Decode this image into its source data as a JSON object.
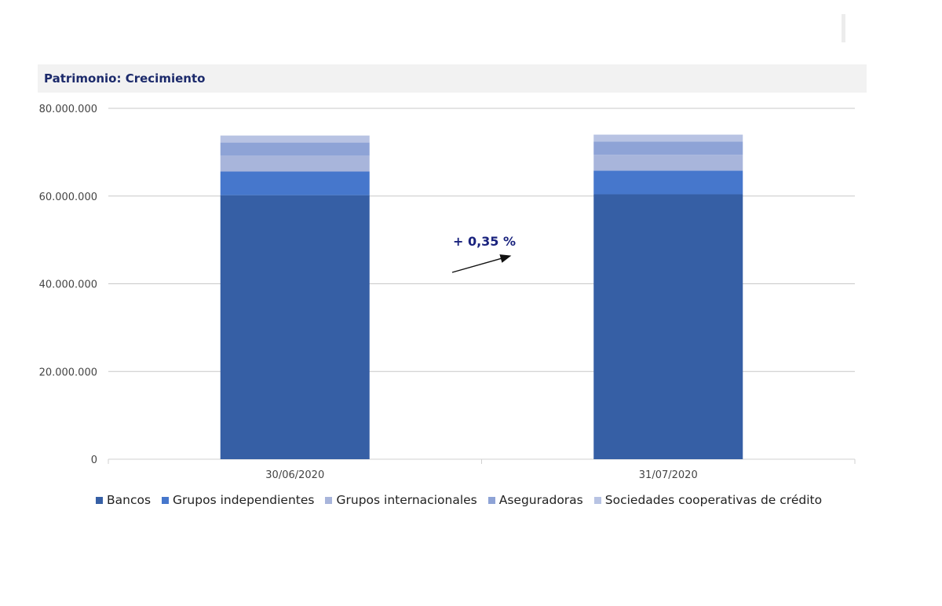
{
  "colors": {
    "Bancos": "#365fa5",
    "Grupos independientes": "#4677cc",
    "Grupos internacionales": "#a8b5db",
    "Aseguradoras": "#8ea3d6",
    "Sociedades cooperativas de crédito": "#b8c3e3"
  },
  "chart_data": {
    "type": "bar",
    "stacked": true,
    "title": "Patrimonio: Crecimiento",
    "xlabel": "",
    "ylabel": "",
    "categories": [
      "30/06/2020",
      "31/07/2020"
    ],
    "series": [
      {
        "name": "Bancos",
        "values": [
          60200000,
          60400000
        ]
      },
      {
        "name": "Grupos independientes",
        "values": [
          5400000,
          5400000
        ]
      },
      {
        "name": "Grupos internacionales",
        "values": [
          3600000,
          3600000
        ]
      },
      {
        "name": "Aseguradoras",
        "values": [
          3000000,
          3000000
        ]
      },
      {
        "name": "Sociedades cooperativas de crédito",
        "values": [
          1600000,
          1600000
        ]
      }
    ],
    "ylim": [
      0,
      80000000
    ],
    "yticks": [
      "0",
      "20.000.000",
      "40.000.000",
      "60.000.000",
      "80.000.000"
    ],
    "ytick_values": [
      0,
      20000000,
      40000000,
      60000000,
      80000000
    ],
    "grid": true,
    "legend_position": "bottom",
    "annotation": {
      "text": "+ 0,35 %"
    }
  }
}
